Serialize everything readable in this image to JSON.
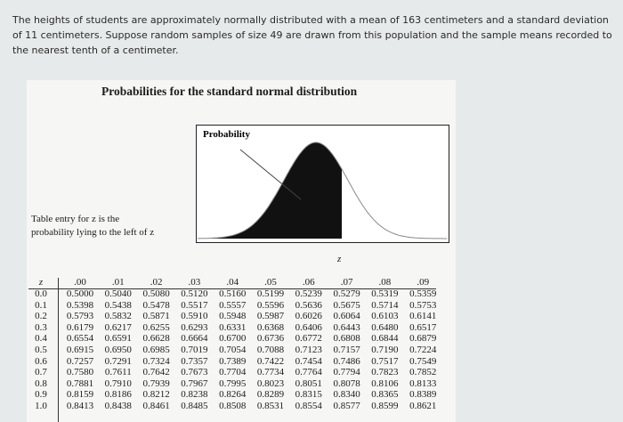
{
  "question": "The heights of students are approximately normally distributed with a mean of 163 centimeters and a standard deviation of 11 centimeters. Suppose random samples of size 49 are drawn from this population and the sample means recorded to the nearest tenth of a centimeter.",
  "panel": {
    "title": "Probabilities for the standard normal distribution",
    "caption": [
      "Table entry for z is the",
      "probability lying to the left of z"
    ],
    "curve_label": "Probability",
    "axis_label": "z"
  },
  "table": {
    "header": [
      "z",
      ".00",
      ".01",
      ".02",
      ".03",
      ".04",
      ".05",
      ".06",
      ".07",
      ".08",
      ".09"
    ],
    "rows": [
      [
        "0.0",
        "0.5000",
        "0.5040",
        "0.5080",
        "0.5120",
        "0.5160",
        "0.5199",
        "0.5239",
        "0.5279",
        "0.5319",
        "0.5359"
      ],
      [
        "0.1",
        "0.5398",
        "0.5438",
        "0.5478",
        "0.5517",
        "0.5557",
        "0.5596",
        "0.5636",
        "0.5675",
        "0.5714",
        "0.5753"
      ],
      [
        "0.2",
        "0.5793",
        "0.5832",
        "0.5871",
        "0.5910",
        "0.5948",
        "0.5987",
        "0.6026",
        "0.6064",
        "0.6103",
        "0.6141"
      ],
      [
        "0.3",
        "0.6179",
        "0.6217",
        "0.6255",
        "0.6293",
        "0.6331",
        "0.6368",
        "0.6406",
        "0.6443",
        "0.6480",
        "0.6517"
      ],
      [
        "0.4",
        "0.6554",
        "0.6591",
        "0.6628",
        "0.6664",
        "0.6700",
        "0.6736",
        "0.6772",
        "0.6808",
        "0.6844",
        "0.6879"
      ],
      [
        "0.5",
        "0.6915",
        "0.6950",
        "0.6985",
        "0.7019",
        "0.7054",
        "0.7088",
        "0.7123",
        "0.7157",
        "0.7190",
        "0.7224"
      ],
      [
        "0.6",
        "0.7257",
        "0.7291",
        "0.7324",
        "0.7357",
        "0.7389",
        "0.7422",
        "0.7454",
        "0.7486",
        "0.7517",
        "0.7549"
      ],
      [
        "0.7",
        "0.7580",
        "0.7611",
        "0.7642",
        "0.7673",
        "0.7704",
        "0.7734",
        "0.7764",
        "0.7794",
        "0.7823",
        "0.7852"
      ],
      [
        "0.8",
        "0.7881",
        "0.7910",
        "0.7939",
        "0.7967",
        "0.7995",
        "0.8023",
        "0.8051",
        "0.8078",
        "0.8106",
        "0.8133"
      ],
      [
        "0.9",
        "0.8159",
        "0.8186",
        "0.8212",
        "0.8238",
        "0.8264",
        "0.8289",
        "0.8315",
        "0.8340",
        "0.8365",
        "0.8389"
      ],
      [
        "1.0",
        "0.8413",
        "0.8438",
        "0.8461",
        "0.8485",
        "0.8508",
        "0.8531",
        "0.8554",
        "0.8577",
        "0.8599",
        "0.8621"
      ]
    ]
  }
}
